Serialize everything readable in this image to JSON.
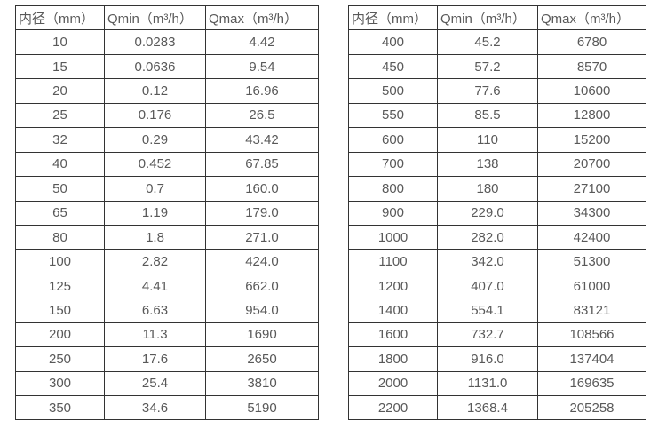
{
  "colors": {
    "border": "#333333",
    "text": "#595959",
    "background": "#ffffff"
  },
  "tables": [
    {
      "name": "flow-rate-table-small-diameters",
      "headers": [
        "内径（mm）",
        "Qmin（m³/h）",
        "Qmax（m³/h）"
      ],
      "rows": [
        [
          "10",
          "0.0283",
          "4.42"
        ],
        [
          "15",
          "0.0636",
          "9.54"
        ],
        [
          "20",
          "0.12",
          "16.96"
        ],
        [
          "25",
          "0.176",
          "26.5"
        ],
        [
          "32",
          "0.29",
          "43.42"
        ],
        [
          "40",
          "0.452",
          "67.85"
        ],
        [
          "50",
          "0.7",
          "160.0"
        ],
        [
          "65",
          "1.19",
          "179.0"
        ],
        [
          "80",
          "1.8",
          "271.0"
        ],
        [
          "100",
          "2.82",
          "424.0"
        ],
        [
          "125",
          "4.41",
          "662.0"
        ],
        [
          "150",
          "6.63",
          "954.0"
        ],
        [
          "200",
          "11.3",
          "1690"
        ],
        [
          "250",
          "17.6",
          "2650"
        ],
        [
          "300",
          "25.4",
          "3810"
        ],
        [
          "350",
          "34.6",
          "5190"
        ]
      ]
    },
    {
      "name": "flow-rate-table-large-diameters",
      "headers": [
        "内径（mm）",
        "Qmin（m³/h）",
        "Qmax（m³/h）"
      ],
      "rows": [
        [
          "400",
          "45.2",
          "6780"
        ],
        [
          "450",
          "57.2",
          "8570"
        ],
        [
          "500",
          "77.6",
          "10600"
        ],
        [
          "550",
          "85.5",
          "12800"
        ],
        [
          "600",
          "110",
          "15200"
        ],
        [
          "700",
          "138",
          "20700"
        ],
        [
          "800",
          "180",
          "27100"
        ],
        [
          "900",
          "229.0",
          "34300"
        ],
        [
          "1000",
          "282.0",
          "42400"
        ],
        [
          "1100",
          "342.0",
          "51300"
        ],
        [
          "1200",
          "407.0",
          "61000"
        ],
        [
          "1400",
          "554.1",
          "83121"
        ],
        [
          "1600",
          "732.7",
          "108566"
        ],
        [
          "1800",
          "916.0",
          "137404"
        ],
        [
          "2000",
          "1131.0",
          "169635"
        ],
        [
          "2200",
          "1368.4",
          "205258"
        ]
      ]
    }
  ]
}
